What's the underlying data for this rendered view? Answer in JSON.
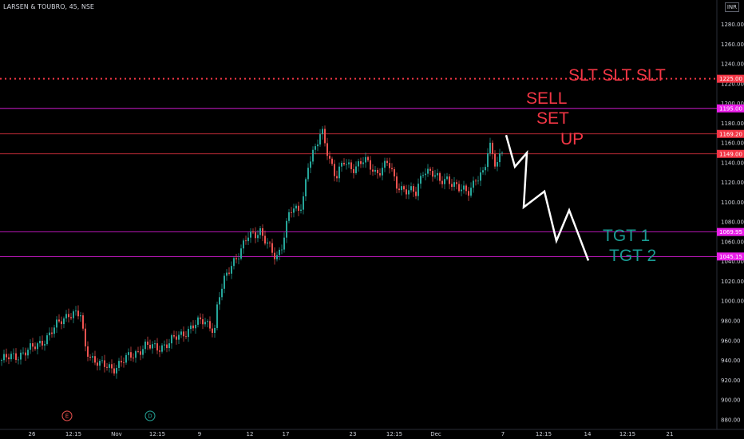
{
  "header": {
    "symbol_line": "LARSEN & TOUBRO, 45, NSE",
    "currency": "INR"
  },
  "chart_data": {
    "type": "candlestick",
    "ylim": [
      875,
      1295
    ],
    "y_ticks": [
      880,
      900,
      920,
      940,
      960,
      980,
      1000,
      1020,
      1040,
      1060,
      1080,
      1100,
      1120,
      1140,
      1160,
      1180,
      1200,
      1220,
      1240,
      1260,
      1280
    ],
    "x_tick_labels": [
      "26",
      "12:15",
      "Nov",
      "12:15",
      "9",
      "12",
      "17",
      "23",
      "12:15",
      "Dec",
      "7",
      "12:15",
      "14",
      "12:15",
      "21"
    ],
    "event_markers": [
      {
        "label": "E",
        "color": "#ef5350"
      },
      {
        "label": "D",
        "color": "#26a69a"
      }
    ],
    "price_lines": [
      {
        "value": 1225.0,
        "label": "1225.00",
        "color": "#f23645",
        "style": "dotted"
      },
      {
        "value": 1195.0,
        "label": "1195.00",
        "color": "#e91ee8",
        "style": "solid"
      },
      {
        "value": 1169.2,
        "label": "1169.20",
        "color": "#f23645",
        "style": "solid"
      },
      {
        "value": 1149.0,
        "label": "1149.00",
        "color": "#f23645",
        "style": "solid"
      },
      {
        "value": 1069.95,
        "label": "1069.95",
        "color": "#e91ee8",
        "style": "solid"
      },
      {
        "value": 1045.15,
        "label": "1045.15",
        "color": "#e91ee8",
        "style": "solid"
      }
    ],
    "price_path": [
      [
        0,
        940
      ],
      [
        20,
        945
      ],
      [
        40,
        952
      ],
      [
        60,
        965
      ],
      [
        75,
        980
      ],
      [
        85,
        988
      ],
      [
        100,
        985
      ],
      [
        105,
        955
      ],
      [
        112,
        945
      ],
      [
        125,
        935
      ],
      [
        140,
        932
      ],
      [
        150,
        938
      ],
      [
        165,
        945
      ],
      [
        180,
        955
      ],
      [
        195,
        952
      ],
      [
        210,
        958
      ],
      [
        225,
        965
      ],
      [
        240,
        975
      ],
      [
        255,
        980
      ],
      [
        268,
        972
      ],
      [
        272,
        1000
      ],
      [
        280,
        1020
      ],
      [
        290,
        1040
      ],
      [
        300,
        1050
      ],
      [
        310,
        1065
      ],
      [
        325,
        1072
      ],
      [
        335,
        1055
      ],
      [
        345,
        1042
      ],
      [
        352,
        1058
      ],
      [
        362,
        1092
      ],
      [
        372,
        1090
      ],
      [
        378,
        1100
      ],
      [
        385,
        1140
      ],
      [
        395,
        1155
      ],
      [
        402,
        1172
      ],
      [
        410,
        1150
      ],
      [
        420,
        1125
      ],
      [
        430,
        1140
      ],
      [
        440,
        1135
      ],
      [
        455,
        1142
      ],
      [
        470,
        1130
      ],
      [
        485,
        1140
      ],
      [
        495,
        1118
      ],
      [
        510,
        1112
      ],
      [
        520,
        1108
      ],
      [
        530,
        1135
      ],
      [
        540,
        1130
      ],
      [
        550,
        1120
      ],
      [
        560,
        1125
      ],
      [
        575,
        1112
      ],
      [
        585,
        1110
      ],
      [
        595,
        1125
      ],
      [
        605,
        1128
      ],
      [
        612,
        1158
      ],
      [
        620,
        1140
      ],
      [
        628,
        1152
      ]
    ],
    "projection_path": [
      [
        634,
        1168
      ],
      [
        645,
        1136
      ],
      [
        660,
        1150
      ],
      [
        656,
        1095
      ],
      [
        682,
        1111
      ],
      [
        697,
        1061
      ],
      [
        713,
        1092
      ],
      [
        737,
        1041
      ]
    ],
    "annotations": [
      {
        "text": "SLT SLT SLT",
        "color": "#f23645"
      },
      {
        "text": "SELL",
        "color": "#f23645"
      },
      {
        "text": "SET",
        "color": "#f23645"
      },
      {
        "text": "UP",
        "color": "#f23645"
      },
      {
        "text": "TGT 1",
        "color": "#1a9c94"
      },
      {
        "text": "TGT 2",
        "color": "#1a9c94"
      }
    ],
    "colors": {
      "up": "#26a69a",
      "down": "#ef5350",
      "grid": "#1e222d",
      "axis_text": "#d1d4dc",
      "projection": "#ffffff"
    }
  }
}
